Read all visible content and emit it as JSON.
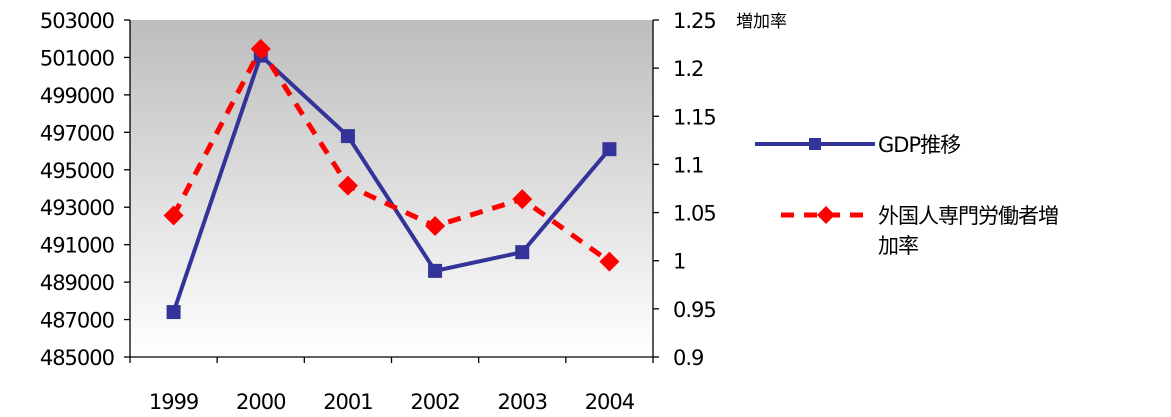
{
  "chart_data": {
    "type": "line",
    "categories": [
      "1999",
      "2000",
      "2001",
      "2002",
      "2003",
      "2004"
    ],
    "y_left": {
      "ylim": [
        485000,
        503000
      ],
      "ticks": [
        "485000",
        "487000",
        "489000",
        "491000",
        "493000",
        "495000",
        "497000",
        "499000",
        "501000",
        "503000"
      ]
    },
    "y_right": {
      "ylim": [
        0.9,
        1.25
      ],
      "ticks": [
        "0.9",
        "0.95",
        "1",
        "1.05",
        "1.1",
        "1.15",
        "1.2",
        "1.25"
      ],
      "unit_label": "増加率"
    },
    "series": [
      {
        "name": "GDP推移",
        "axis": "left",
        "values": [
          487400,
          501100,
          496800,
          489600,
          490600,
          496100
        ],
        "color": "#333399",
        "line_style": "solid",
        "marker": "square"
      },
      {
        "name": "外国人専門労働者増加率",
        "axis": "right",
        "values": [
          1.047,
          1.22,
          1.078,
          1.036,
          1.064,
          0.999
        ],
        "color": "#ff0000",
        "line_style": "dashed",
        "marker": "diamond"
      }
    ],
    "legend": {
      "position": "right",
      "labels": [
        "GDP推移",
        "外国人専門労働者増",
        "加率"
      ]
    },
    "plot_background": "gradient gray to white",
    "grid": false
  }
}
